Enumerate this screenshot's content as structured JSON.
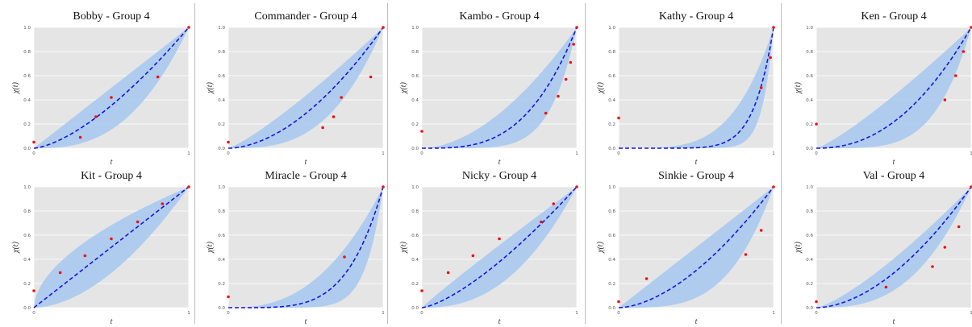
{
  "chart_data": [
    {
      "type": "line",
      "title": "Bobby - Group 4",
      "xlabel": "t",
      "ylabel": "χ(t)",
      "xlim": [
        0,
        1
      ],
      "ylim": [
        0,
        1
      ],
      "x_ticks": [
        "0",
        "1"
      ],
      "y_ticks": [
        "0.0",
        "0.2",
        "0.4",
        "0.6",
        "0.8",
        "1.0"
      ],
      "grid": true,
      "mean_exponent": 1.5,
      "band_exponents": [
        1.0,
        2.7
      ],
      "points": [
        {
          "x": 0.0,
          "y": 0.05
        },
        {
          "x": 0.3,
          "y": 0.09
        },
        {
          "x": 0.4,
          "y": 0.26
        },
        {
          "x": 0.5,
          "y": 0.42
        },
        {
          "x": 0.8,
          "y": 0.59
        },
        {
          "x": 1.0,
          "y": 1.0
        }
      ]
    },
    {
      "type": "line",
      "title": "Commander - Group 4",
      "xlabel": "t",
      "ylabel": "χ(t)",
      "xlim": [
        0,
        1
      ],
      "ylim": [
        0,
        1
      ],
      "x_ticks": [
        "0",
        "1"
      ],
      "y_ticks": [
        "0.0",
        "0.2",
        "0.4",
        "0.6",
        "0.8",
        "1.0"
      ],
      "grid": true,
      "mean_exponent": 1.8,
      "band_exponents": [
        1.2,
        3.0
      ],
      "points": [
        {
          "x": 0.0,
          "y": 0.05
        },
        {
          "x": 0.61,
          "y": 0.17
        },
        {
          "x": 0.68,
          "y": 0.26
        },
        {
          "x": 0.73,
          "y": 0.42
        },
        {
          "x": 0.92,
          "y": 0.59
        },
        {
          "x": 1.0,
          "y": 1.0
        }
      ]
    },
    {
      "type": "line",
      "title": "Kambo - Group 4",
      "xlabel": "t",
      "ylabel": "χ(t)",
      "xlim": [
        0,
        1
      ],
      "ylim": [
        0,
        1
      ],
      "x_ticks": [
        "0",
        "1"
      ],
      "y_ticks": [
        "0.0",
        "0.2",
        "0.4",
        "0.6",
        "0.8",
        "1.0"
      ],
      "grid": true,
      "mean_exponent": 3.2,
      "band_exponents": [
        1.8,
        6.0
      ],
      "points": [
        {
          "x": 0.0,
          "y": 0.14
        },
        {
          "x": 0.8,
          "y": 0.29
        },
        {
          "x": 0.88,
          "y": 0.43
        },
        {
          "x": 0.93,
          "y": 0.57
        },
        {
          "x": 0.96,
          "y": 0.71
        },
        {
          "x": 0.98,
          "y": 0.86
        },
        {
          "x": 1.0,
          "y": 1.0
        }
      ]
    },
    {
      "type": "line",
      "title": "Kathy - Group 4",
      "xlabel": "t",
      "ylabel": "χ(t)",
      "xlim": [
        0,
        1
      ],
      "ylim": [
        0,
        1
      ],
      "x_ticks": [
        "0",
        "1"
      ],
      "y_ticks": [
        "0.0",
        "0.2",
        "0.4",
        "0.6",
        "0.8",
        "1.0"
      ],
      "grid": true,
      "mean_exponent": 8.0,
      "band_exponents": [
        4.0,
        14.0
      ],
      "points": [
        {
          "x": 0.0,
          "y": 0.25
        },
        {
          "x": 0.92,
          "y": 0.5
        },
        {
          "x": 0.98,
          "y": 0.75
        },
        {
          "x": 1.0,
          "y": 1.0
        }
      ]
    },
    {
      "type": "line",
      "title": "Ken - Group 4",
      "xlabel": "t",
      "ylabel": "χ(t)",
      "xlim": [
        0,
        1
      ],
      "ylim": [
        0,
        1
      ],
      "x_ticks": [
        "0",
        "1"
      ],
      "y_ticks": [
        "0.0",
        "0.2",
        "0.4",
        "0.6",
        "0.8",
        "1.0"
      ],
      "grid": true,
      "mean_exponent": 2.2,
      "band_exponents": [
        1.2,
        4.5
      ],
      "points": [
        {
          "x": 0.0,
          "y": 0.2
        },
        {
          "x": 0.83,
          "y": 0.4
        },
        {
          "x": 0.9,
          "y": 0.6
        },
        {
          "x": 0.95,
          "y": 0.8
        },
        {
          "x": 1.0,
          "y": 1.0
        }
      ]
    },
    {
      "type": "line",
      "title": "Kit - Group 4",
      "xlabel": "t",
      "ylabel": "χ(t)",
      "xlim": [
        0,
        1
      ],
      "ylim": [
        0,
        1
      ],
      "x_ticks": [
        "0",
        "1"
      ],
      "y_ticks": [
        "0.0",
        "0.2",
        "0.4",
        "0.6",
        "0.8",
        "1.0"
      ],
      "grid": true,
      "mean_exponent": 1.0,
      "band_exponents": [
        0.55,
        1.8
      ],
      "points": [
        {
          "x": 0.0,
          "y": 0.14
        },
        {
          "x": 0.17,
          "y": 0.29
        },
        {
          "x": 0.33,
          "y": 0.43
        },
        {
          "x": 0.5,
          "y": 0.57
        },
        {
          "x": 0.67,
          "y": 0.71
        },
        {
          "x": 0.83,
          "y": 0.86
        },
        {
          "x": 1.0,
          "y": 1.0
        }
      ]
    },
    {
      "type": "line",
      "title": "Miracle - Group 4",
      "xlabel": "t",
      "ylabel": "χ(t)",
      "xlim": [
        0,
        1
      ],
      "ylim": [
        0,
        1
      ],
      "x_ticks": [
        "0",
        "1"
      ],
      "y_ticks": [
        "0.0",
        "0.2",
        "0.4",
        "0.6",
        "0.8",
        "1.0"
      ],
      "grid": true,
      "mean_exponent": 4.5,
      "band_exponents": [
        2.5,
        9.0
      ],
      "points": [
        {
          "x": 0.0,
          "y": 0.09
        },
        {
          "x": 0.75,
          "y": 0.42
        },
        {
          "x": 1.0,
          "y": 1.0
        }
      ]
    },
    {
      "type": "line",
      "title": "Nicky - Group 4",
      "xlabel": "t",
      "ylabel": "χ(t)",
      "xlim": [
        0,
        1
      ],
      "ylim": [
        0,
        1
      ],
      "x_ticks": [
        "0",
        "1"
      ],
      "y_ticks": [
        "0.0",
        "0.2",
        "0.4",
        "0.6",
        "0.8",
        "1.0"
      ],
      "grid": true,
      "mean_exponent": 1.4,
      "band_exponents": [
        0.95,
        2.4
      ],
      "points": [
        {
          "x": 0.0,
          "y": 0.14
        },
        {
          "x": 0.17,
          "y": 0.29
        },
        {
          "x": 0.33,
          "y": 0.43
        },
        {
          "x": 0.5,
          "y": 0.57
        },
        {
          "x": 0.77,
          "y": 0.71
        },
        {
          "x": 0.85,
          "y": 0.86
        },
        {
          "x": 1.0,
          "y": 1.0
        }
      ]
    },
    {
      "type": "line",
      "title": "Sinkie - Group 4",
      "xlabel": "t",
      "ylabel": "χ(t)",
      "xlim": [
        0,
        1
      ],
      "ylim": [
        0,
        1
      ],
      "x_ticks": [
        "0",
        "1"
      ],
      "y_ticks": [
        "0.0",
        "0.2",
        "0.4",
        "0.6",
        "0.8",
        "1.0"
      ],
      "grid": true,
      "mean_exponent": 1.7,
      "band_exponents": [
        1.0,
        3.6
      ],
      "points": [
        {
          "x": 0.0,
          "y": 0.05
        },
        {
          "x": 0.18,
          "y": 0.24
        },
        {
          "x": 0.82,
          "y": 0.44
        },
        {
          "x": 0.92,
          "y": 0.64
        },
        {
          "x": 1.0,
          "y": 1.0
        }
      ]
    },
    {
      "type": "line",
      "title": "Val - Group 4",
      "xlabel": "t",
      "ylabel": "χ(t)",
      "xlim": [
        0,
        1
      ],
      "ylim": [
        0,
        1
      ],
      "x_ticks": [
        "0",
        "1"
      ],
      "y_ticks": [
        "0.0",
        "0.2",
        "0.4",
        "0.6",
        "0.8",
        "1.0"
      ],
      "grid": true,
      "mean_exponent": 1.8,
      "band_exponents": [
        1.3,
        2.8
      ],
      "points": [
        {
          "x": 0.0,
          "y": 0.05
        },
        {
          "x": 0.45,
          "y": 0.17
        },
        {
          "x": 0.75,
          "y": 0.34
        },
        {
          "x": 0.83,
          "y": 0.5
        },
        {
          "x": 0.92,
          "y": 0.67
        },
        {
          "x": 1.0,
          "y": 1.0
        }
      ]
    }
  ],
  "colors": {
    "panel_bg": "#e5e5e5",
    "grid": "#ffffff",
    "band": "#a9c9ef",
    "mean_line": "#1515dd",
    "points": "#ee1111"
  }
}
